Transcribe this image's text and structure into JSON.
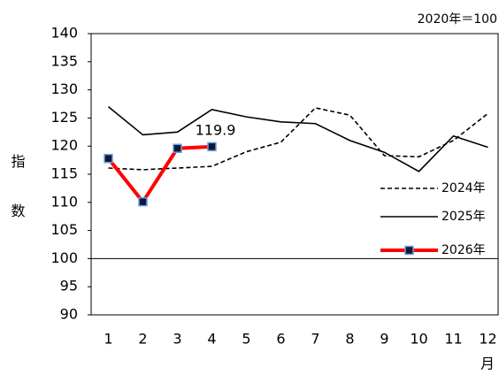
{
  "chart_data": {
    "type": "line",
    "note": "2020年＝100",
    "y_label": "指数",
    "x_label": "月",
    "categories": [
      "1",
      "2",
      "3",
      "4",
      "5",
      "6",
      "7",
      "8",
      "9",
      "10",
      "11",
      "12"
    ],
    "series": [
      {
        "name": "2024年",
        "color": "#000000",
        "dash": "dashed",
        "values": [
          116.1,
          115.8,
          116.1,
          116.4,
          119,
          120.7,
          126.8,
          125.5,
          118.3,
          118.1,
          121,
          125.8
        ]
      },
      {
        "name": "2025年",
        "color": "#000000",
        "dash": "solid",
        "values": [
          127,
          122,
          122.5,
          126.5,
          125.2,
          124.3,
          124,
          121,
          118.9,
          115.5,
          121.8,
          119.8
        ]
      },
      {
        "name": "2026年",
        "color": "#ff0000",
        "dash": "solid",
        "marker": "square",
        "values": [
          117.8,
          110.1,
          119.6,
          119.9,
          null,
          null,
          null,
          null,
          null,
          null,
          null,
          null
        ],
        "value_labels": [
          null,
          null,
          null,
          "119.9",
          null,
          null,
          null,
          null,
          null,
          null,
          null,
          null
        ]
      }
    ],
    "ylim": [
      90,
      140
    ],
    "yticks": [
      90,
      95,
      100,
      105,
      110,
      115,
      120,
      125,
      130,
      135,
      140
    ],
    "reference_line": 100,
    "grid": false,
    "legend": "right"
  }
}
